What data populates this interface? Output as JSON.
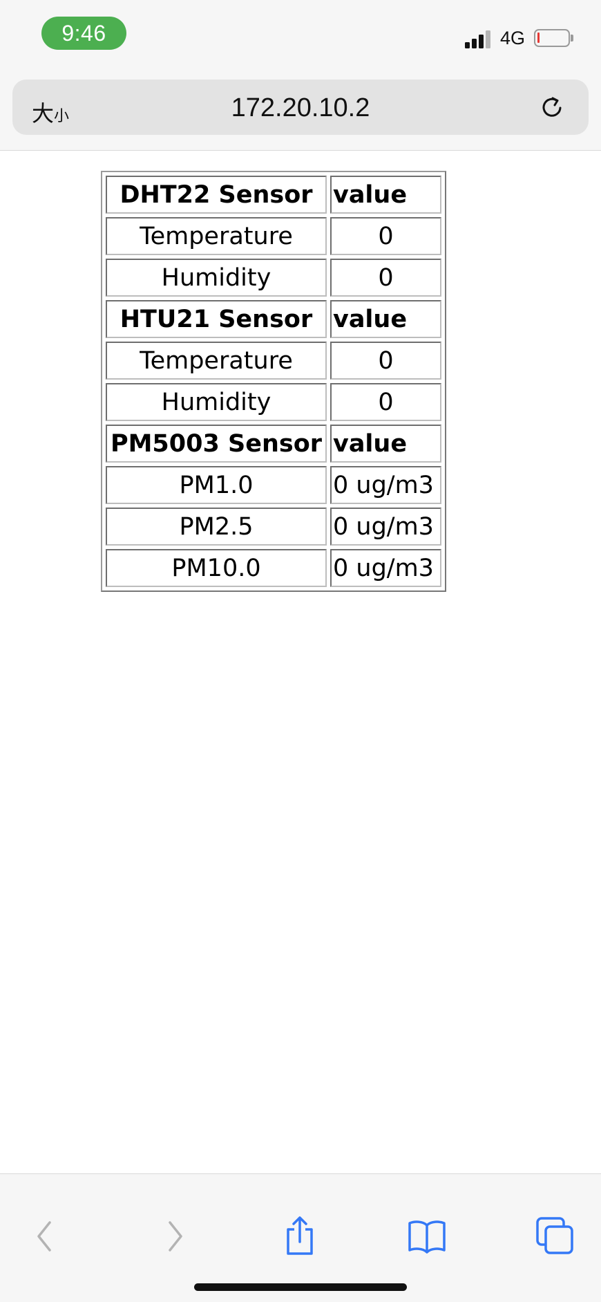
{
  "status_bar": {
    "time": "9:46",
    "network": "4G",
    "battery_level": 0.08,
    "colors": {
      "time_pill": "#4caf50",
      "battery_low": "#e53935"
    }
  },
  "address_bar": {
    "text_size_large": "大",
    "text_size_small": "小",
    "url": "172.20.10.2",
    "reload_icon": "reload-icon"
  },
  "table": {
    "sections": [
      {
        "header": {
          "name": "DHT22 Sensor",
          "value": "value"
        },
        "rows": [
          {
            "name": "Temperature",
            "value": "0"
          },
          {
            "name": "Humidity",
            "value": "0"
          }
        ]
      },
      {
        "header": {
          "name": "HTU21 Sensor",
          "value": "value"
        },
        "rows": [
          {
            "name": "Temperature",
            "value": "0"
          },
          {
            "name": "Humidity",
            "value": "0"
          }
        ]
      },
      {
        "header": {
          "name": "PM5003 Sensor",
          "value": "value"
        },
        "rows": [
          {
            "name": "PM1.0",
            "value": "0 ug/m3"
          },
          {
            "name": "PM2.5",
            "value": "0 ug/m3"
          },
          {
            "name": "PM10.0",
            "value": "0 ug/m3"
          }
        ]
      }
    ]
  },
  "toolbar": {
    "icons": [
      "back-icon",
      "forward-icon",
      "share-icon",
      "bookmarks-icon",
      "tabs-icon"
    ],
    "colors": {
      "active": "#3478f6",
      "disabled": "#b3b3b3"
    }
  }
}
